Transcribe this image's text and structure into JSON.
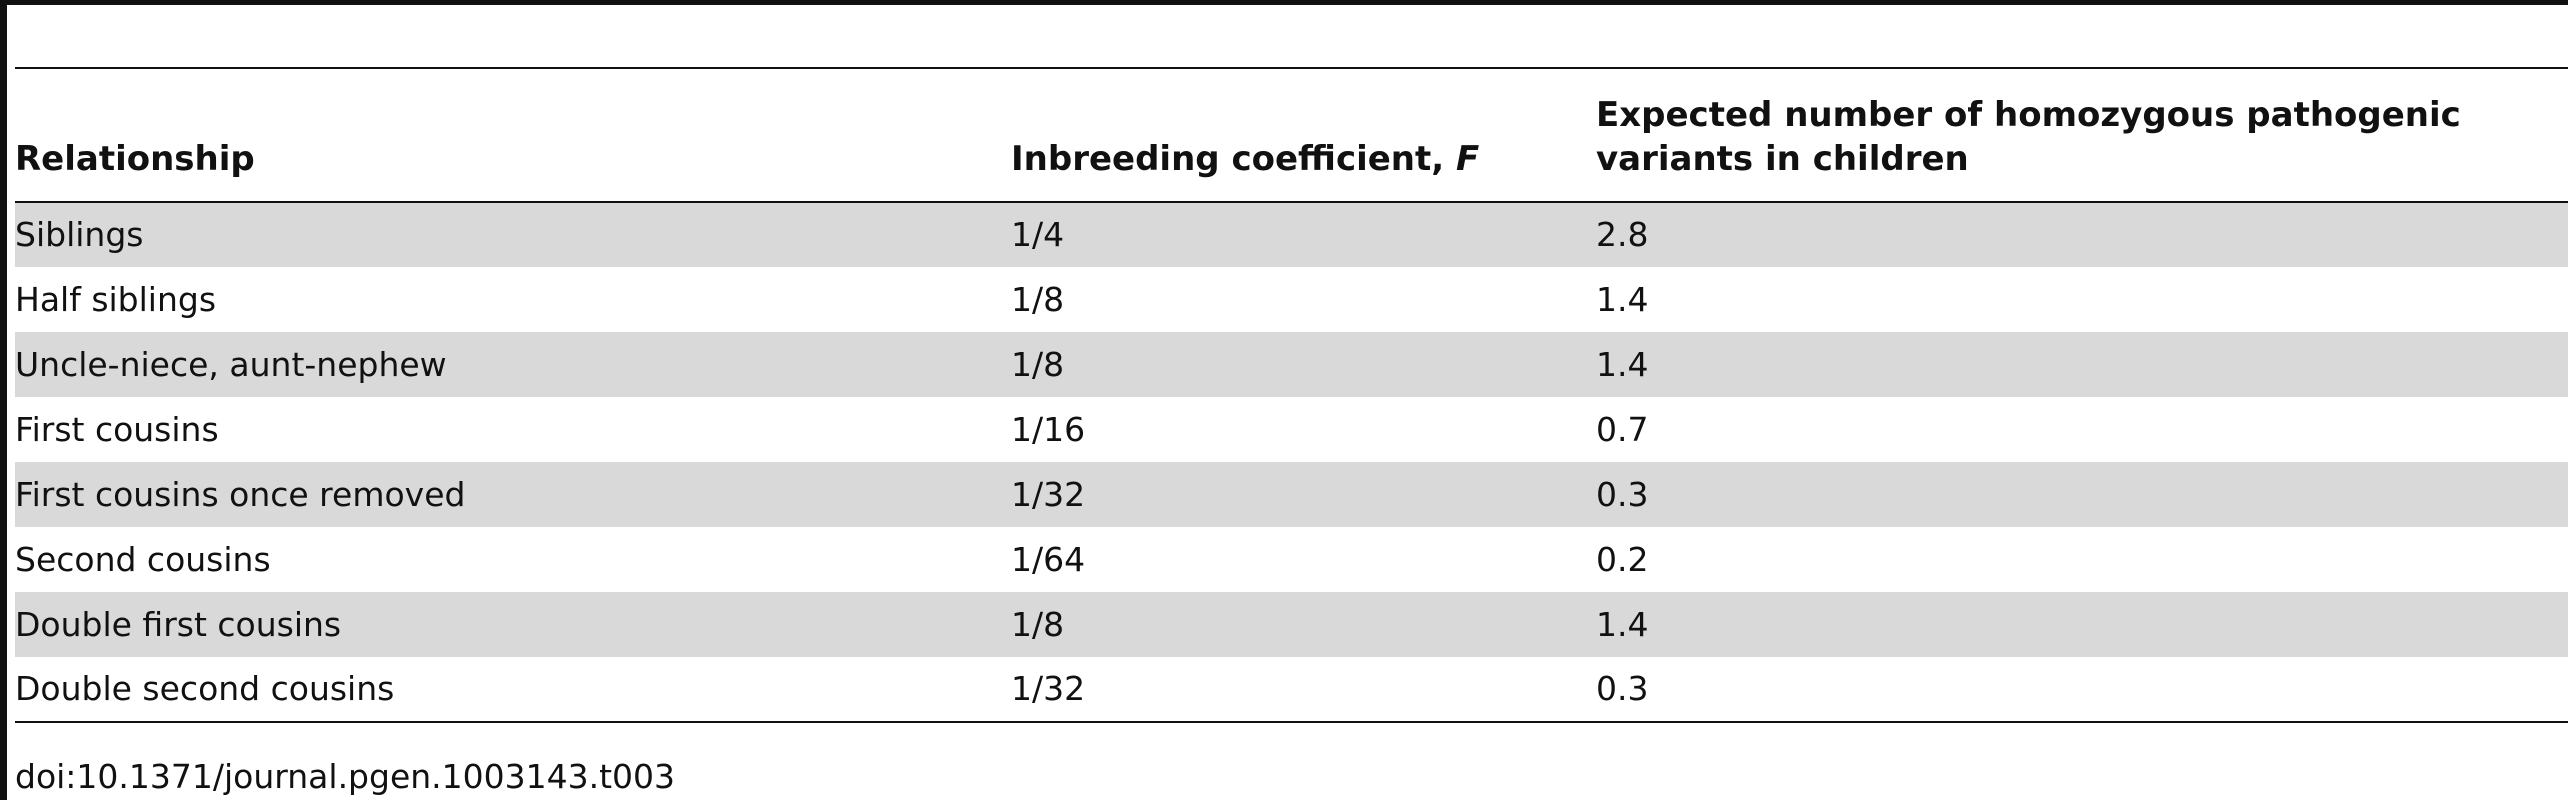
{
  "table": {
    "headers": {
      "relationship": "Relationship",
      "inbreeding_prefix": "Inbreeding coefficient, ",
      "inbreeding_symbol": "F",
      "expected": "Expected number of homozygous pathogenic variants in children"
    },
    "rows": [
      {
        "relationship": "Siblings",
        "coefficient": "1/4",
        "expected": "2.8"
      },
      {
        "relationship": "Half siblings",
        "coefficient": "1/8",
        "expected": "1.4"
      },
      {
        "relationship": "Uncle-niece, aunt-nephew",
        "coefficient": "1/8",
        "expected": "1.4"
      },
      {
        "relationship": "First cousins",
        "coefficient": "1/16",
        "expected": "0.7"
      },
      {
        "relationship": "First cousins once removed",
        "coefficient": "1/32",
        "expected": "0.3"
      },
      {
        "relationship": "Second cousins",
        "coefficient": "1/64",
        "expected": "0.2"
      },
      {
        "relationship": "Double first cousins",
        "coefficient": "1/8",
        "expected": "1.4"
      },
      {
        "relationship": "Double second cousins",
        "coefficient": "1/32",
        "expected": "0.3"
      }
    ]
  },
  "footer": {
    "doi": "doi:10.1371/journal.pgen.1003143.t003"
  }
}
